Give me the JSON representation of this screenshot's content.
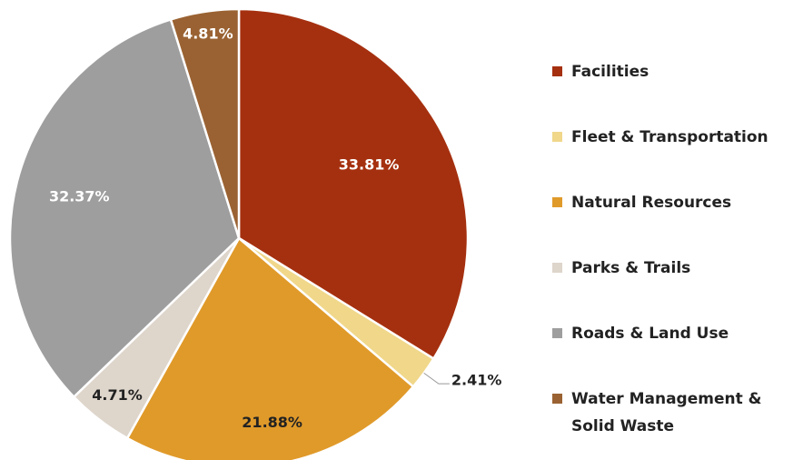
{
  "chart_data": {
    "type": "pie",
    "categories": [
      "Facilities",
      "Fleet & Transportation",
      "Natural Resources",
      "Parks & Trails",
      "Roads & Land Use",
      "Water Management & Solid Waste"
    ],
    "values": [
      33.81,
      2.41,
      21.88,
      4.71,
      32.37,
      4.81
    ],
    "value_labels": [
      "33.81%",
      "2.41%",
      "21.88%",
      "4.71%",
      "32.37%",
      "4.81%"
    ],
    "colors": [
      "#a5300f",
      "#f0d78a",
      "#e09a2a",
      "#ded5cb",
      "#9e9e9e",
      "#9a6232"
    ],
    "legend": "right"
  }
}
